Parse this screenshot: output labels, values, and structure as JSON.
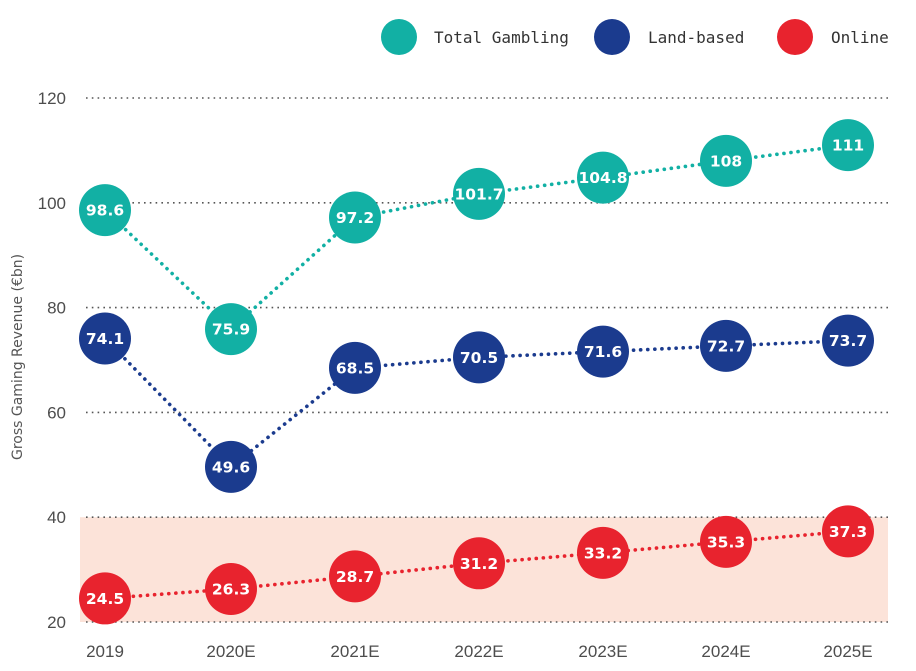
{
  "chart_data": {
    "type": "line",
    "ylabel": "Gross Gaming Revenue (€bn)",
    "ylim": [
      20,
      120
    ],
    "yticks": [
      20,
      40,
      60,
      80,
      100,
      120
    ],
    "categories": [
      "2019",
      "2020E",
      "2021E",
      "2022E",
      "2023E",
      "2024E",
      "2025E"
    ],
    "grid": true,
    "legend_position": "top-right",
    "shaded_band": {
      "from": 20,
      "to": 40,
      "color": "#fce3d9"
    },
    "series": [
      {
        "name": "Total Gambling",
        "color": "#12b0a4",
        "values": [
          98.6,
          75.9,
          97.2,
          101.7,
          104.8,
          108,
          111
        ],
        "labels": [
          "98.6",
          "75.9",
          "97.2",
          "101.7",
          "104.8",
          "108",
          "111"
        ]
      },
      {
        "name": "Land-based",
        "color": "#1b3b8e",
        "values": [
          74.1,
          49.6,
          68.5,
          70.5,
          71.6,
          72.7,
          73.7
        ],
        "labels": [
          "74.1",
          "49.6",
          "68.5",
          "70.5",
          "71.6",
          "72.7",
          "73.7"
        ]
      },
      {
        "name": "Online",
        "color": "#e8232e",
        "values": [
          24.5,
          26.3,
          28.7,
          31.2,
          33.2,
          35.3,
          37.3
        ],
        "labels": [
          "24.5",
          "26.3",
          "28.7",
          "31.2",
          "33.2",
          "35.3",
          "37.3"
        ]
      }
    ]
  }
}
